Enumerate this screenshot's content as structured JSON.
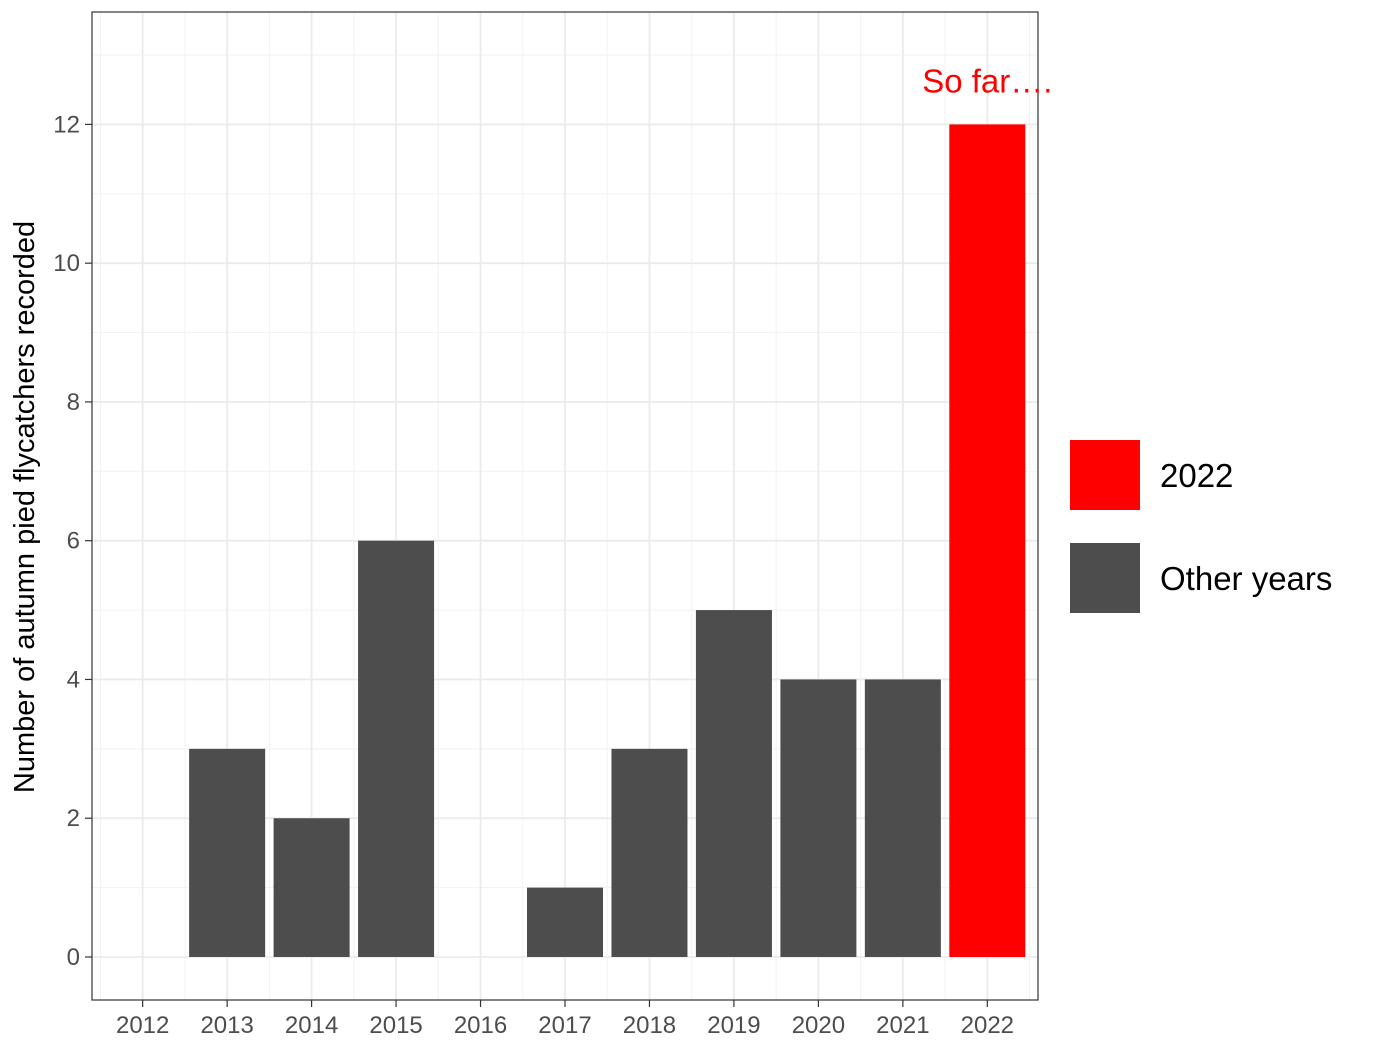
{
  "chart_data": {
    "type": "bar",
    "title": "",
    "xlabel": "",
    "ylabel": "Number of autumn pied flycatchers recorded",
    "categories": [
      "2012",
      "2013",
      "2014",
      "2015",
      "2016",
      "2017",
      "2018",
      "2019",
      "2020",
      "2021",
      "2022"
    ],
    "values": [
      0,
      3,
      2,
      6,
      0,
      1,
      3,
      5,
      4,
      4,
      12
    ],
    "groups": [
      "Other years",
      "Other years",
      "Other years",
      "Other years",
      "Other years",
      "Other years",
      "Other years",
      "Other years",
      "Other years",
      "Other years",
      "2022"
    ],
    "ylim": [
      -0.62,
      13.62
    ],
    "yticks": [
      0,
      2,
      4,
      6,
      8,
      10,
      12
    ],
    "ytick_labels": [
      "0",
      "2",
      "4",
      "6",
      "8",
      "10",
      "12"
    ],
    "grid": true,
    "legend": {
      "placement": "right",
      "entries": [
        {
          "label": "2022",
          "color": "#ff0000"
        },
        {
          "label": "Other years",
          "color": "#4d4d4d"
        }
      ]
    },
    "annotation": {
      "text": "So far….",
      "category": "2022",
      "y": 12.65,
      "color": "#ff0000"
    }
  }
}
